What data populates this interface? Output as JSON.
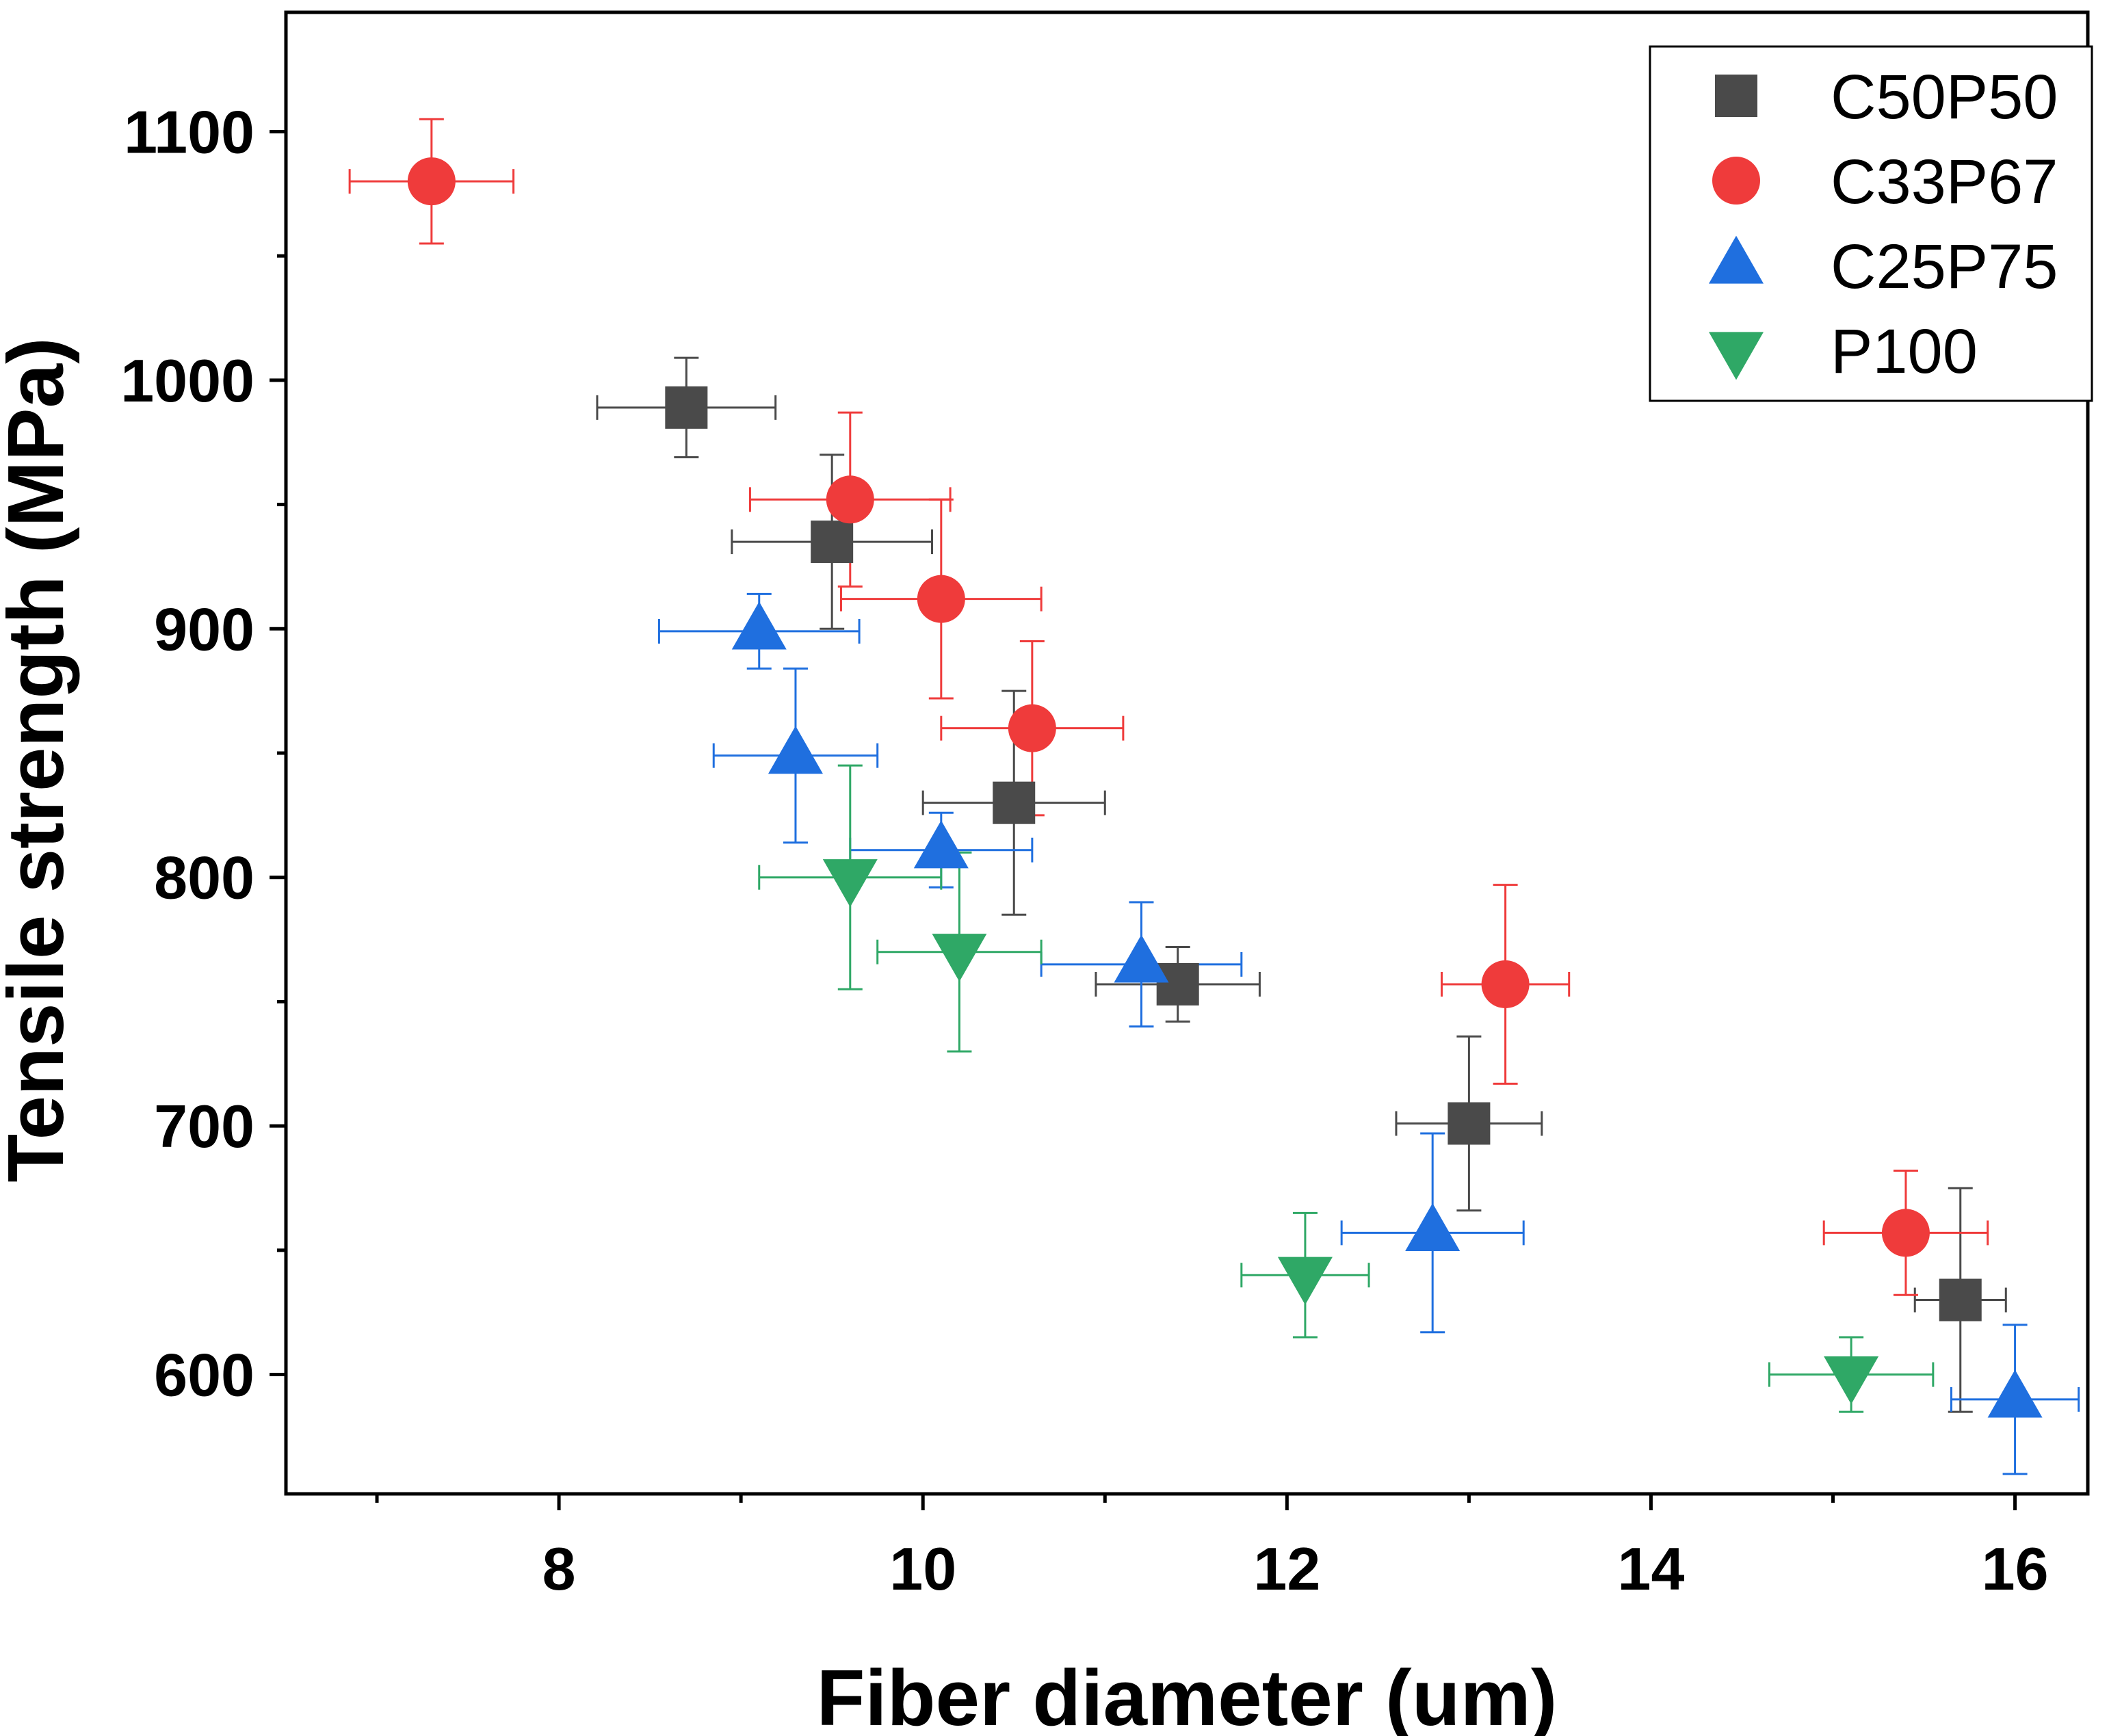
{
  "chart_data": {
    "type": "scatter",
    "xlabel": "Fiber diameter (um)",
    "ylabel": "Tensile strength (MPa)",
    "xlim": [
      6.5,
      16.4
    ],
    "ylim": [
      552,
      1148
    ],
    "x_ticks": [
      8,
      10,
      12,
      14,
      16
    ],
    "x_minor_ticks": [
      7,
      9,
      11,
      13,
      15
    ],
    "y_ticks": [
      600,
      700,
      800,
      900,
      1000,
      1100
    ],
    "y_minor_ticks": [
      650,
      750,
      850,
      950,
      1050
    ],
    "grid": false,
    "legend_position": "top-right",
    "series": [
      {
        "name": "C50P50",
        "marker": "square",
        "color": "#4a4a4a",
        "errorbar_color": "#4a4a4a",
        "points": [
          {
            "x": 8.7,
            "y": 989,
            "xerr": 0.49,
            "yerr": 20
          },
          {
            "x": 9.5,
            "y": 935,
            "xerr": 0.55,
            "yerr": 35
          },
          {
            "x": 10.5,
            "y": 830,
            "xerr": 0.5,
            "yerr": 45
          },
          {
            "x": 11.4,
            "y": 757,
            "xerr": 0.45,
            "yerr": 15
          },
          {
            "x": 13.0,
            "y": 701,
            "xerr": 0.4,
            "yerr": 35
          },
          {
            "x": 15.7,
            "y": 630,
            "xerr": 0.25,
            "yerr": 45
          }
        ]
      },
      {
        "name": "C33P67",
        "marker": "circle",
        "color": "#ef3b3b",
        "errorbar_color": "#ef3b3b",
        "points": [
          {
            "x": 7.3,
            "y": 1080,
            "xerr": 0.45,
            "yerr": 25
          },
          {
            "x": 9.6,
            "y": 952,
            "xerr": 0.55,
            "yerr": 35
          },
          {
            "x": 10.1,
            "y": 912,
            "xerr": 0.55,
            "yerr": 40
          },
          {
            "x": 10.6,
            "y": 860,
            "xerr": 0.5,
            "yerr": 35
          },
          {
            "x": 13.2,
            "y": 757,
            "xerr": 0.35,
            "yerr": 40
          },
          {
            "x": 15.4,
            "y": 657,
            "xerr": 0.45,
            "yerr": 25
          }
        ]
      },
      {
        "name": "C25P75",
        "marker": "triangle-up",
        "color": "#1f6fdf",
        "errorbar_color": "#1f6fdf",
        "points": [
          {
            "x": 9.1,
            "y": 899,
            "xerr": 0.55,
            "yerr": 15
          },
          {
            "x": 9.3,
            "y": 849,
            "xerr": 0.45,
            "yerr": 35
          },
          {
            "x": 10.1,
            "y": 811,
            "xerr": 0.5,
            "yerr": 15
          },
          {
            "x": 11.2,
            "y": 765,
            "xerr": 0.55,
            "yerr": 25
          },
          {
            "x": 12.8,
            "y": 657,
            "xerr": 0.5,
            "yerr": 40
          },
          {
            "x": 16.0,
            "y": 590,
            "xerr": 0.35,
            "yerr": 30
          }
        ]
      },
      {
        "name": "P100",
        "marker": "triangle-down",
        "color": "#2fa866",
        "errorbar_color": "#2fa866",
        "points": [
          {
            "x": 9.6,
            "y": 800,
            "xerr": 0.5,
            "yerr": 45
          },
          {
            "x": 10.2,
            "y": 770,
            "xerr": 0.45,
            "yerr": 40
          },
          {
            "x": 12.1,
            "y": 640,
            "xerr": 0.35,
            "yerr": 25
          },
          {
            "x": 15.1,
            "y": 600,
            "xerr": 0.45,
            "yerr": 15
          }
        ]
      }
    ]
  }
}
